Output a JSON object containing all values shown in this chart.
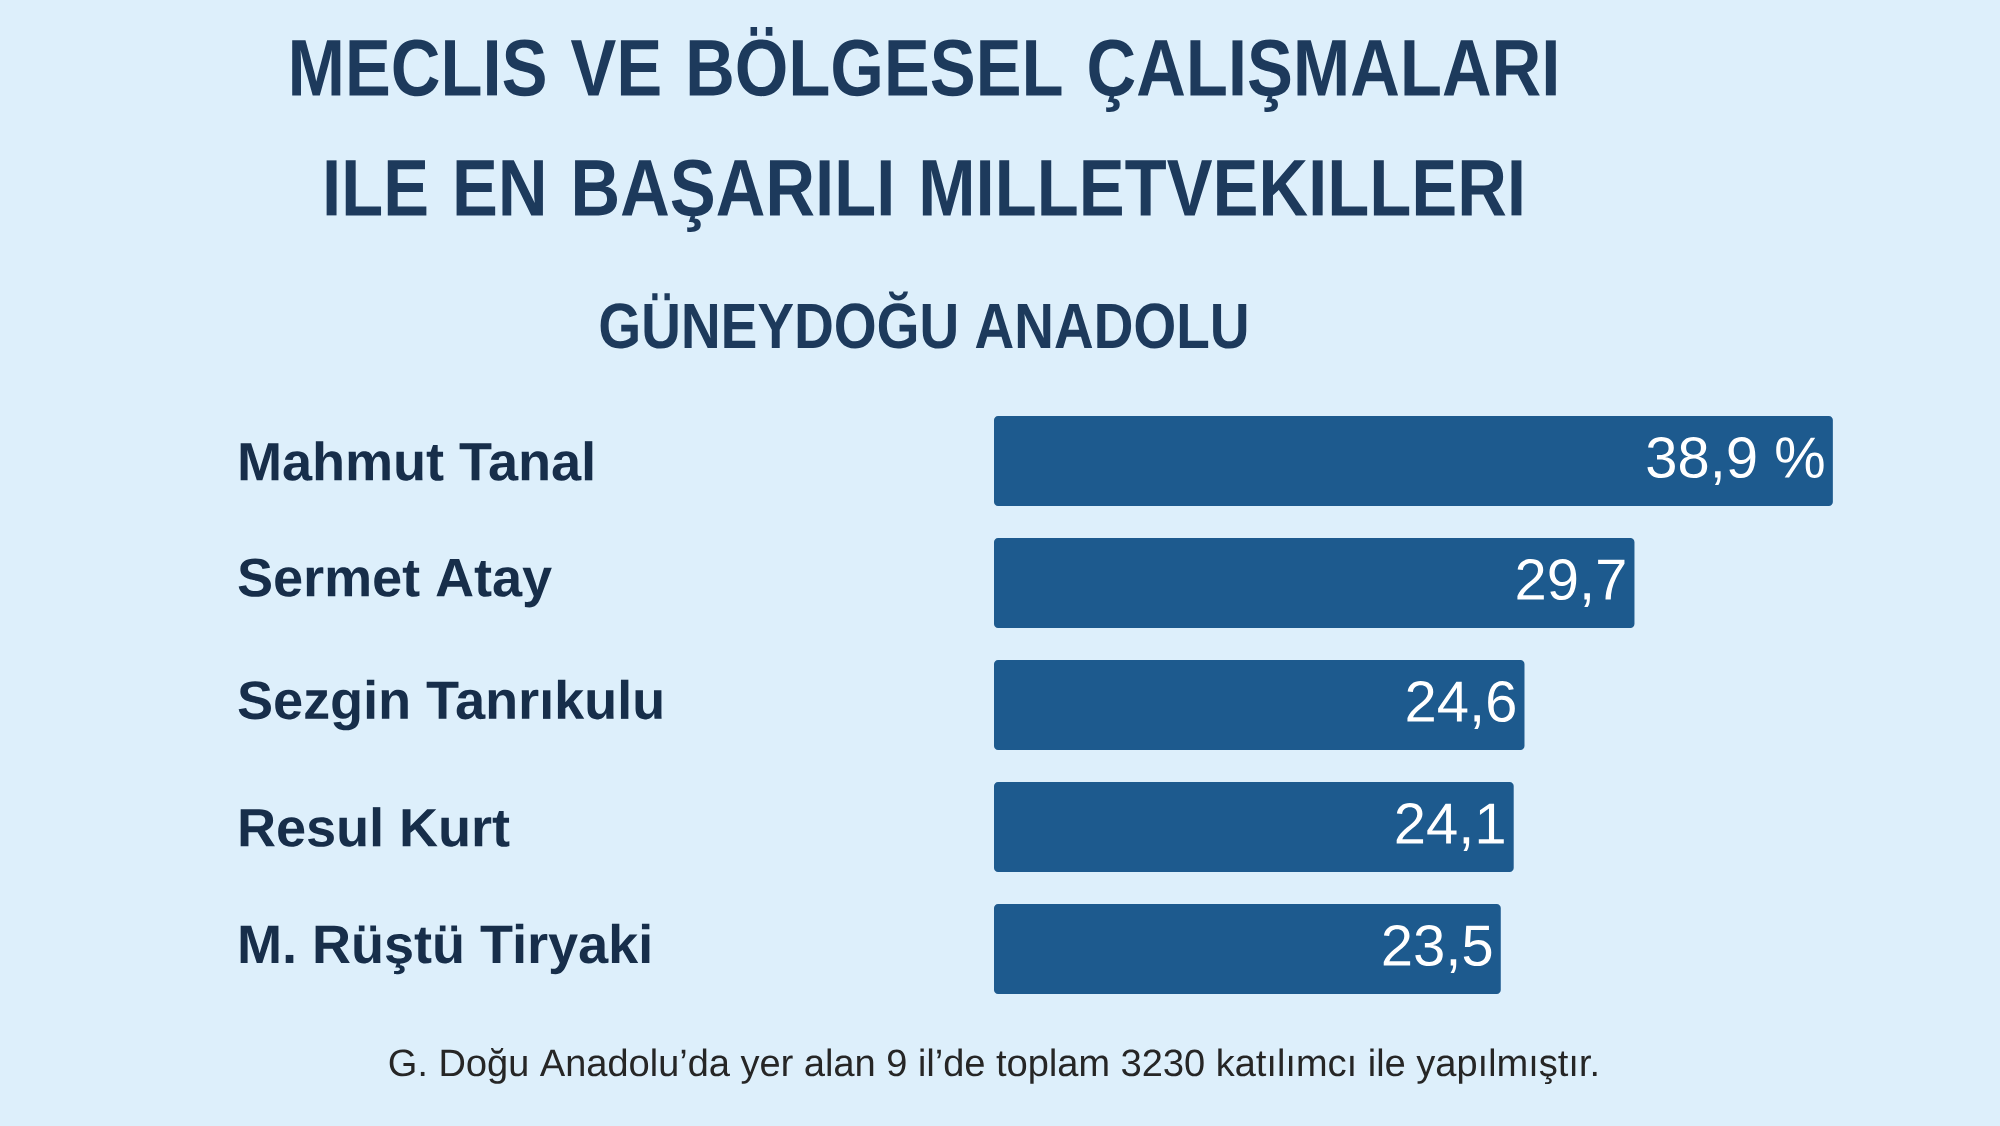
{
  "chart_data": {
    "type": "bar",
    "orientation": "horizontal",
    "title": "MECLIS VE BÖLGESEL ÇALIŞMALARI ILE EN BAŞARILI MILLETVEKILLERI",
    "subtitle": "GÜNEYDOĞU ANADOLU",
    "categories": [
      "Mahmut Tanal",
      "Sermet Atay",
      "Sezgin Tanrıkulu",
      "Resul Kurt",
      "M. Rüştü Tiryaki"
    ],
    "values": [
      38.9,
      29.7,
      24.6,
      24.1,
      23.5
    ],
    "value_labels": [
      "38,9 %",
      "29,7",
      "24,6",
      "24,1",
      "23,5"
    ],
    "color": "#1d5a8e",
    "tick_labels": "y",
    "annotations": [
      "G. Doğu Anadolu’da yer alan 9 il’de toplam 3230 katılımcı ile yapılmıştır."
    ]
  }
}
